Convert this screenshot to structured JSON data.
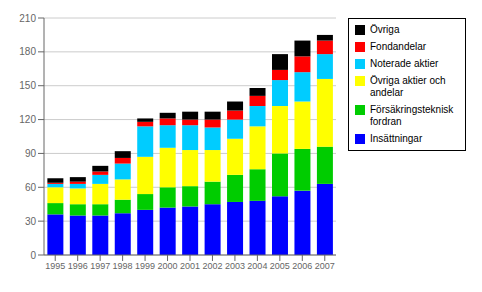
{
  "chart_data": {
    "type": "bar",
    "stacked": true,
    "grid": true,
    "legend": "right",
    "categories": [
      "1995",
      "1996",
      "1997",
      "1998",
      "1999",
      "2000",
      "2001",
      "2002",
      "2003",
      "2004",
      "2005",
      "2006",
      "2007"
    ],
    "series": [
      {
        "name": "Insättningar",
        "color": "#0000ff",
        "values": [
          36,
          35,
          35,
          37,
          40,
          42,
          43,
          45,
          47,
          48,
          52,
          57,
          63
        ]
      },
      {
        "name": "Försäkringsteknisk\nfordran",
        "color": "#00cc00",
        "values": [
          10,
          10,
          10,
          12,
          14,
          18,
          18,
          20,
          24,
          28,
          38,
          37,
          33
        ]
      },
      {
        "name": "Övriga aktier och\nandelar",
        "color": "#ffff00",
        "values": [
          14,
          14,
          18,
          18,
          33,
          35,
          32,
          28,
          32,
          38,
          42,
          42,
          60
        ]
      },
      {
        "name": "Noterade aktier",
        "color": "#00ccff",
        "values": [
          3,
          4,
          8,
          14,
          27,
          20,
          22,
          20,
          17,
          18,
          23,
          26,
          22
        ]
      },
      {
        "name": "Fondandelar",
        "color": "#ff0000",
        "values": [
          1,
          2,
          3,
          5,
          4,
          6,
          5,
          7,
          8,
          9,
          9,
          14,
          12
        ]
      },
      {
        "name": "Övriga",
        "color": "#000000",
        "values": [
          4,
          4,
          5,
          6,
          3,
          5,
          7,
          7,
          8,
          7,
          14,
          14,
          5
        ]
      }
    ],
    "ylim": [
      0,
      210
    ],
    "yticks": [
      0,
      30,
      60,
      90,
      120,
      150,
      180,
      210
    ]
  }
}
